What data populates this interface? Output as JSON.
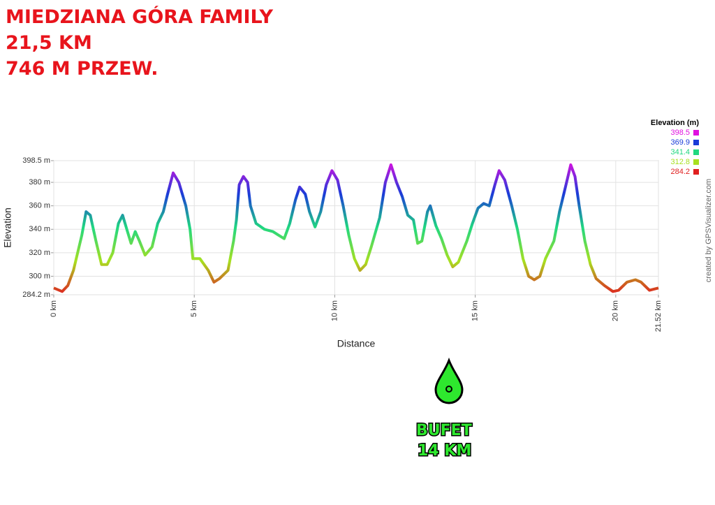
{
  "title_lines": [
    "MIEDZIANA GÓRA FAMILY",
    "21,5 KM",
    "746 M PRZEW."
  ],
  "annotation": [
    "BUFET",
    "14 KM"
  ],
  "chart_data": {
    "type": "line",
    "x_label": "Distance",
    "y_label": "Elevation",
    "credit": "created by GPSVisualizer.com",
    "legend_title": "Elevation (m)",
    "color_scale": [
      {
        "value": 398.5,
        "color": "#e010e0"
      },
      {
        "value": 369.9,
        "color": "#1a3cd8"
      },
      {
        "value": 341.4,
        "color": "#20d880"
      },
      {
        "value": 312.8,
        "color": "#a8e020"
      },
      {
        "value": 284.2,
        "color": "#e02020"
      }
    ],
    "xlim": [
      0,
      21.52
    ],
    "ylim": [
      284.2,
      398.5
    ],
    "xticks": [
      {
        "value": 0,
        "label": "0 km"
      },
      {
        "value": 5,
        "label": "5 km"
      },
      {
        "value": 10,
        "label": "10 km"
      },
      {
        "value": 15,
        "label": "15 km"
      },
      {
        "value": 20,
        "label": "20 km"
      },
      {
        "value": 21.52,
        "label": "21.52 km"
      }
    ],
    "yticks": [
      {
        "value": 284.2,
        "label": "284.2 m"
      },
      {
        "value": 300,
        "label": "300 m"
      },
      {
        "value": 320,
        "label": "320 m"
      },
      {
        "value": 340,
        "label": "340 m"
      },
      {
        "value": 360,
        "label": "360 m"
      },
      {
        "value": 380,
        "label": "380 m"
      },
      {
        "value": 398.5,
        "label": "398.5 m"
      }
    ],
    "grid": true,
    "x": [
      0,
      0.3,
      0.5,
      0.7,
      1.0,
      1.15,
      1.3,
      1.5,
      1.7,
      1.9,
      2.1,
      2.3,
      2.45,
      2.6,
      2.75,
      2.9,
      3.05,
      3.25,
      3.5,
      3.7,
      3.9,
      4.05,
      4.25,
      4.45,
      4.7,
      4.85,
      4.95,
      5.2,
      5.5,
      5.7,
      5.9,
      6.2,
      6.4,
      6.5,
      6.6,
      6.75,
      6.9,
      7.0,
      7.2,
      7.5,
      7.8,
      8.0,
      8.2,
      8.4,
      8.6,
      8.75,
      8.95,
      9.1,
      9.3,
      9.5,
      9.7,
      9.9,
      10.1,
      10.3,
      10.5,
      10.7,
      10.9,
      11.1,
      11.3,
      11.6,
      11.8,
      12.0,
      12.2,
      12.4,
      12.6,
      12.8,
      12.95,
      13.1,
      13.3,
      13.4,
      13.6,
      13.8,
      14.0,
      14.2,
      14.4,
      14.7,
      14.9,
      15.1,
      15.3,
      15.5,
      15.7,
      15.85,
      16.05,
      16.3,
      16.5,
      16.7,
      16.9,
      17.1,
      17.3,
      17.5,
      17.8,
      18.0,
      18.2,
      18.4,
      18.55,
      18.7,
      18.9,
      19.1,
      19.3,
      19.6,
      19.9,
      20.1,
      20.4,
      20.7,
      20.9,
      21.2,
      21.52
    ],
    "values": [
      290,
      287,
      292,
      305,
      335,
      355,
      352,
      330,
      310,
      310,
      320,
      345,
      352,
      340,
      328,
      338,
      330,
      318,
      325,
      345,
      355,
      370,
      388,
      380,
      360,
      340,
      315,
      315,
      305,
      295,
      298,
      305,
      330,
      348,
      378,
      385,
      380,
      360,
      345,
      340,
      338,
      335,
      332,
      345,
      365,
      376,
      370,
      355,
      342,
      355,
      378,
      390,
      382,
      360,
      335,
      315,
      305,
      310,
      325,
      350,
      380,
      395,
      380,
      368,
      352,
      348,
      328,
      330,
      355,
      360,
      343,
      332,
      318,
      308,
      312,
      330,
      345,
      358,
      362,
      360,
      378,
      390,
      382,
      360,
      340,
      315,
      300,
      297,
      300,
      315,
      330,
      355,
      375,
      395,
      385,
      360,
      330,
      310,
      298,
      292,
      287,
      288,
      295,
      297,
      295,
      288,
      290
    ]
  }
}
